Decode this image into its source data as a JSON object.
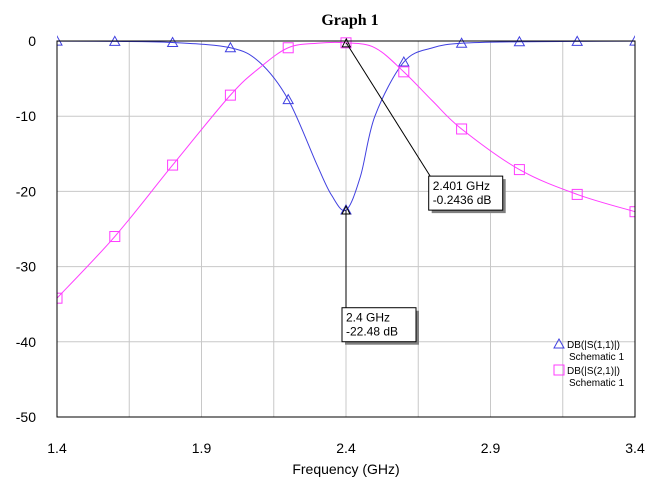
{
  "chart_data": {
    "type": "line",
    "title": "Graph 1",
    "xlabel": "Frequency (GHz)",
    "ylabel": "",
    "xlim": [
      1.4,
      3.4
    ],
    "ylim": [
      -50,
      0
    ],
    "x_ticks": [
      1.4,
      1.9,
      2.4,
      2.9,
      3.4
    ],
    "x_tick_labels": [
      "1.4",
      "1.9",
      "2.4",
      "2.9",
      "3.4"
    ],
    "y_ticks": [
      0,
      -10,
      -20,
      -30,
      -40,
      -50
    ],
    "y_tick_labels": [
      "0",
      "-10",
      "-20",
      "-30",
      "-40",
      "-50"
    ],
    "x_minor_gridlines": [
      1.65,
      2.15,
      2.65,
      3.15
    ],
    "grid": true,
    "legend_position": "bottom-right",
    "series": [
      {
        "name": "DB(|S(1,1)|)",
        "sub_name": "Schematic 1",
        "color": "#4040e0",
        "marker": "triangle",
        "x": [
          1.4,
          1.6,
          1.8,
          2.0,
          2.1,
          2.2,
          2.3,
          2.35,
          2.4,
          2.45,
          2.5,
          2.6,
          2.7,
          2.8,
          3.0,
          3.2,
          3.4
        ],
        "y": [
          -0.02,
          -0.05,
          -0.2,
          -0.9,
          -2.8,
          -7.8,
          -16.5,
          -20.5,
          -22.48,
          -18,
          -10,
          -2.8,
          -0.9,
          -0.3,
          -0.1,
          -0.05,
          -0.02
        ],
        "marker_x": [
          1.4,
          1.6,
          1.8,
          2.0,
          2.2,
          2.4,
          2.6,
          2.8,
          3.0,
          3.2,
          3.4
        ],
        "marker_y": [
          -0.02,
          -0.05,
          -0.2,
          -0.9,
          -7.8,
          -22.48,
          -2.8,
          -0.3,
          -0.1,
          -0.05,
          -0.02
        ]
      },
      {
        "name": "DB(|S(2,1)|)",
        "sub_name": "Schematic 1",
        "color": "#ff3cff",
        "marker": "square",
        "x": [
          1.4,
          1.6,
          1.8,
          2.0,
          2.1,
          2.2,
          2.3,
          2.4,
          2.5,
          2.6,
          2.7,
          2.8,
          3.0,
          3.2,
          3.4
        ],
        "y": [
          -34.2,
          -26,
          -16.5,
          -7.2,
          -3.6,
          -0.9,
          -0.3,
          -0.2436,
          -0.9,
          -4.1,
          -8.0,
          -11.7,
          -17.1,
          -20.4,
          -22.7
        ],
        "marker_x": [
          1.4,
          1.6,
          1.8,
          2.0,
          2.2,
          2.4,
          2.6,
          2.8,
          3.0,
          3.2,
          3.4
        ],
        "marker_y": [
          -34.2,
          -26,
          -16.5,
          -7.2,
          -0.9,
          -0.2436,
          -4.1,
          -11.7,
          -17.1,
          -20.4,
          -22.7
        ]
      }
    ],
    "annotations": [
      {
        "lines": [
          "2.401 GHz",
          "-0.2436 dB"
        ],
        "x": 2.401,
        "y": -0.2436,
        "box_x": 2.7,
        "box_y": -18.5
      },
      {
        "lines": [
          "2.4 GHz",
          "-22.48 dB"
        ],
        "x": 2.4,
        "y": -22.48,
        "box_x": 2.4,
        "box_y": -36
      }
    ]
  }
}
